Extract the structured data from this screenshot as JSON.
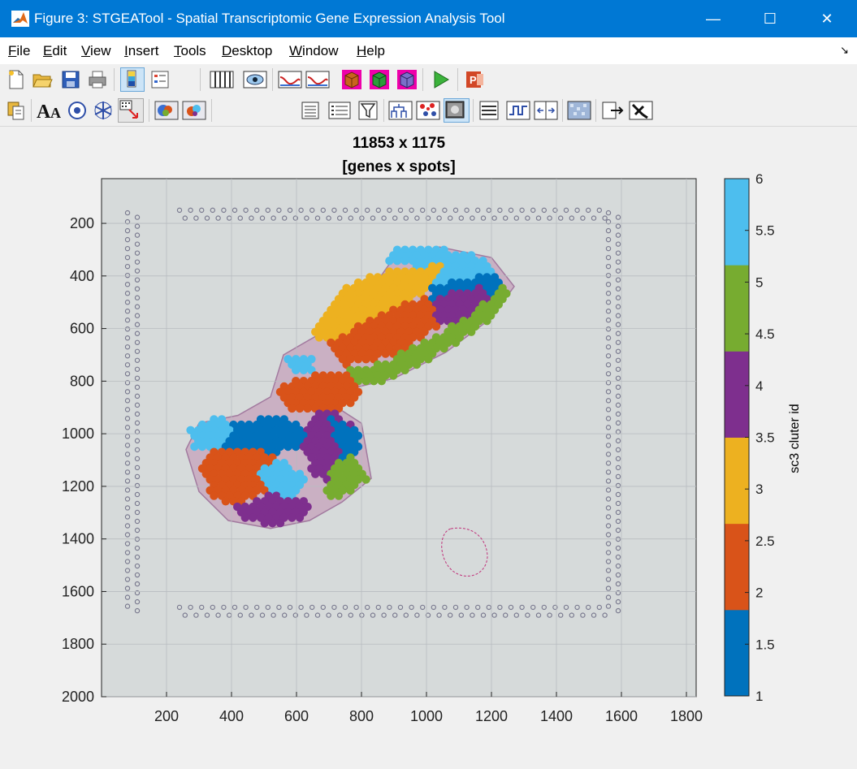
{
  "window": {
    "title": "Figure 3: STGEATool - Spatial Transcriptomic Gene Expression Analysis Tool",
    "minimize": "—",
    "maximize": "☐",
    "close": "✕"
  },
  "menu": [
    "File",
    "Edit",
    "View",
    "Insert",
    "Tools",
    "Desktop",
    "Window",
    "Help"
  ],
  "menu_mnemonic": [
    "F",
    "E",
    "V",
    "I",
    "T",
    "D",
    "W",
    "H"
  ],
  "toolbar1": [
    {
      "name": "new-figure-icon"
    },
    {
      "name": "open-file-icon"
    },
    {
      "name": "save-icon"
    },
    {
      "name": "print-icon"
    },
    {
      "name": "colorbar-icon"
    },
    {
      "name": "legend-icon"
    },
    {
      "name": "select-genes-icon"
    },
    {
      "name": "view-icon"
    },
    {
      "name": "lasso-curve-icon"
    },
    {
      "name": "curve-fit-icon"
    },
    {
      "name": "cube-orange-icon"
    },
    {
      "name": "cube-green-icon"
    },
    {
      "name": "cube-purple-icon"
    },
    {
      "name": "run-icon"
    },
    {
      "name": "powerpoint-export-icon"
    }
  ],
  "toolbar2": [
    {
      "name": "copy-icon"
    },
    {
      "name": "font-size-icon"
    },
    {
      "name": "circle-target-icon"
    },
    {
      "name": "snowflake-icon"
    },
    {
      "name": "select-region-icon"
    },
    {
      "name": "spot-image-icon"
    },
    {
      "name": "spot-image-alt-icon"
    },
    {
      "name": "list-icon"
    },
    {
      "name": "table-list-icon"
    },
    {
      "name": "filter-icon"
    },
    {
      "name": "cluster-tree-icon"
    },
    {
      "name": "scatter-color-icon"
    },
    {
      "name": "image-overlay-icon"
    },
    {
      "name": "rows-icon"
    },
    {
      "name": "step-plot-icon"
    },
    {
      "name": "split-view-icon"
    },
    {
      "name": "gene-heatmap-icon"
    },
    {
      "name": "export-icon"
    },
    {
      "name": "tools-icon"
    }
  ],
  "plot": {
    "title_line1": "11853 x 1175",
    "title_line2": "[genes x spots]",
    "colorbar_label": "sc3 cluter id"
  },
  "chart_data": {
    "type": "scatter",
    "title": "11853 x 1175 [genes x spots]",
    "x_ticks": [
      200,
      400,
      600,
      800,
      1000,
      1200,
      1400,
      1600,
      1800
    ],
    "y_ticks": [
      200,
      400,
      600,
      800,
      1000,
      1200,
      1400,
      1600,
      1800,
      2000
    ],
    "xlim": [
      0,
      1830
    ],
    "ylim": [
      2000,
      30
    ],
    "y_reversed": true,
    "grid": true,
    "colorbar": {
      "label": "sc3 cluter id",
      "range": [
        1,
        6
      ],
      "ticks": [
        "1",
        "1.5",
        "2",
        "2.5",
        "3",
        "3.5",
        "4",
        "4.5",
        "5",
        "5.5",
        "6"
      ],
      "classes": [
        {
          "id": 1,
          "color": "#0072bd"
        },
        {
          "id": 2,
          "color": "#d95319"
        },
        {
          "id": 3,
          "color": "#edb120"
        },
        {
          "id": 4,
          "color": "#7e2f8e"
        },
        {
          "id": 5,
          "color": "#77ac30"
        },
        {
          "id": 6,
          "color": "#4dbeee"
        }
      ]
    },
    "regions": [
      {
        "cluster": 6,
        "polygon": [
          [
            900,
            300
          ],
          [
            1040,
            290
          ],
          [
            1180,
            330
          ],
          [
            1210,
            400
          ],
          [
            1000,
            400
          ],
          [
            950,
            360
          ],
          [
            860,
            340
          ]
        ]
      },
      {
        "cluster": 3,
        "polygon": [
          [
            770,
            420
          ],
          [
            900,
            370
          ],
          [
            1050,
            360
          ],
          [
            1020,
            450
          ],
          [
            960,
            490
          ],
          [
            860,
            560
          ],
          [
            750,
            640
          ],
          [
            690,
            660
          ],
          [
            650,
            610
          ]
        ]
      },
      {
        "cluster": 6,
        "polygon": [
          [
            1030,
            390
          ],
          [
            1120,
            360
          ],
          [
            1190,
            420
          ],
          [
            1110,
            470
          ],
          [
            1030,
            470
          ]
        ]
      },
      {
        "cluster": 2,
        "polygon": [
          [
            690,
            660
          ],
          [
            800,
            580
          ],
          [
            900,
            520
          ],
          [
            990,
            480
          ],
          [
            1090,
            480
          ],
          [
            1160,
            500
          ],
          [
            1070,
            560
          ],
          [
            1000,
            620
          ],
          [
            920,
            690
          ],
          [
            820,
            730
          ],
          [
            740,
            740
          ]
        ]
      },
      {
        "cluster": 1,
        "polygon": [
          [
            1010,
            440
          ],
          [
            1210,
            390
          ],
          [
            1250,
            450
          ],
          [
            1150,
            540
          ],
          [
            1060,
            560
          ],
          [
            1010,
            500
          ]
        ]
      },
      {
        "cluster": 4,
        "polygon": [
          [
            1020,
            480
          ],
          [
            1180,
            440
          ],
          [
            1200,
            500
          ],
          [
            1100,
            570
          ],
          [
            1030,
            590
          ]
        ]
      },
      {
        "cluster": 5,
        "polygon": [
          [
            760,
            760
          ],
          [
            880,
            720
          ],
          [
            1000,
            650
          ],
          [
            1120,
            560
          ],
          [
            1240,
            440
          ],
          [
            1260,
            480
          ],
          [
            1180,
            580
          ],
          [
            1060,
            680
          ],
          [
            950,
            760
          ],
          [
            840,
            820
          ],
          [
            760,
            820
          ]
        ]
      },
      {
        "cluster": 6,
        "polygon": [
          [
            560,
            700
          ],
          [
            650,
            700
          ],
          [
            660,
            770
          ],
          [
            600,
            780
          ]
        ]
      },
      {
        "cluster": 2,
        "polygon": [
          [
            540,
            820
          ],
          [
            640,
            780
          ],
          [
            740,
            760
          ],
          [
            800,
            820
          ],
          [
            790,
            880
          ],
          [
            680,
            930
          ],
          [
            560,
            900
          ]
        ]
      },
      {
        "cluster": 1,
        "polygon": [
          [
            300,
            990
          ],
          [
            400,
            950
          ],
          [
            560,
            940
          ],
          [
            660,
            990
          ],
          [
            600,
            1060
          ],
          [
            480,
            1080
          ],
          [
            360,
            1060
          ]
        ]
      },
      {
        "cluster": 6,
        "polygon": [
          [
            270,
            980
          ],
          [
            360,
            930
          ],
          [
            420,
            980
          ],
          [
            360,
            1050
          ],
          [
            280,
            1050
          ]
        ]
      },
      {
        "cluster": 2,
        "polygon": [
          [
            330,
            1070
          ],
          [
            450,
            1060
          ],
          [
            540,
            1080
          ],
          [
            560,
            1150
          ],
          [
            500,
            1220
          ],
          [
            420,
            1280
          ],
          [
            350,
            1250
          ],
          [
            300,
            1150
          ]
        ]
      },
      {
        "cluster": 6,
        "polygon": [
          [
            480,
            1140
          ],
          [
            560,
            1100
          ],
          [
            640,
            1180
          ],
          [
            600,
            1250
          ],
          [
            520,
            1240
          ]
        ]
      },
      {
        "cluster": 4,
        "polygon": [
          [
            400,
            1280
          ],
          [
            520,
            1230
          ],
          [
            640,
            1260
          ],
          [
            620,
            1320
          ],
          [
            530,
            1350
          ],
          [
            440,
            1330
          ]
        ]
      },
      {
        "cluster": 4,
        "polygon": [
          [
            640,
            930
          ],
          [
            720,
            900
          ],
          [
            780,
            980
          ],
          [
            760,
            1090
          ],
          [
            720,
            1180
          ],
          [
            650,
            1170
          ],
          [
            620,
            1060
          ]
        ]
      },
      {
        "cluster": 1,
        "polygon": [
          [
            700,
            940
          ],
          [
            790,
            980
          ],
          [
            800,
            1060
          ],
          [
            740,
            1100
          ]
        ]
      },
      {
        "cluster": 5,
        "polygon": [
          [
            700,
            1120
          ],
          [
            770,
            1080
          ],
          [
            820,
            1170
          ],
          [
            740,
            1250
          ],
          [
            690,
            1230
          ]
        ]
      }
    ]
  }
}
